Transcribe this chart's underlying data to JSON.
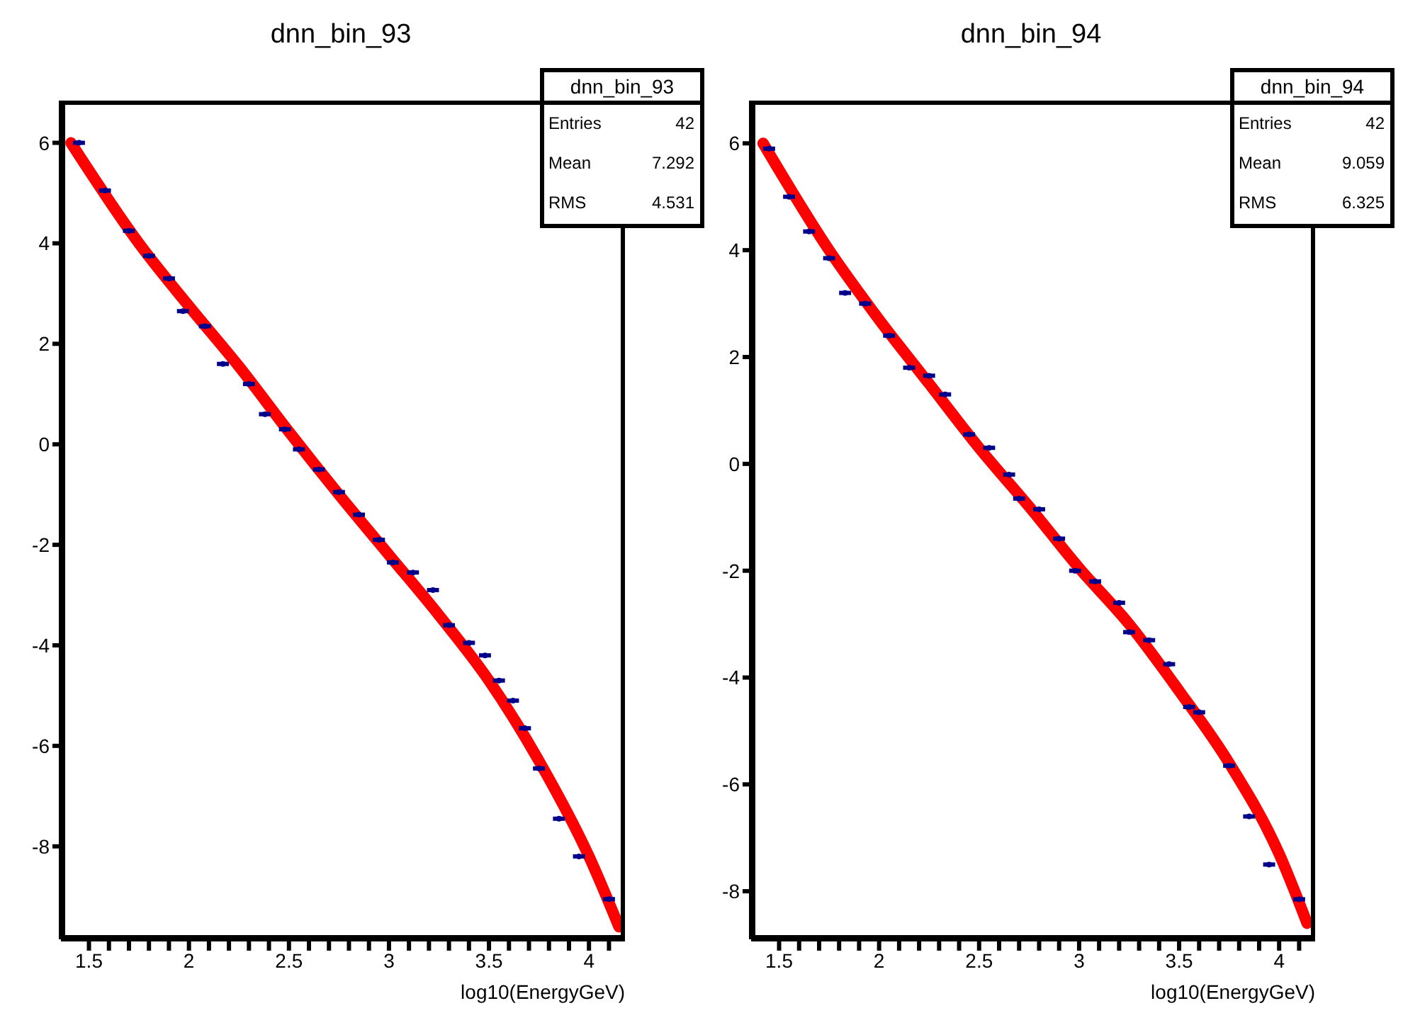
{
  "chart_data": [
    {
      "type": "scatter",
      "title": "dnn_bin_93",
      "xlabel": "log10(EnergyGeV)",
      "xlim": [
        1.36,
        4.18
      ],
      "ylim": [
        -9.85,
        6.84
      ],
      "xticks": [
        1.5,
        {
          "value": 1.6,
          "label": null
        },
        {
          "value": 1.7,
          "label": null
        },
        {
          "value": 1.8,
          "label": null
        },
        {
          "value": 1.9,
          "label": null
        },
        2,
        {
          "value": 2.1,
          "label": null
        },
        {
          "value": 2.2,
          "label": null
        },
        {
          "value": 2.3,
          "label": null
        },
        {
          "value": 2.4,
          "label": null
        },
        2.5,
        {
          "value": 2.6,
          "label": null
        },
        {
          "value": 2.7,
          "label": null
        },
        {
          "value": 2.8,
          "label": null
        },
        {
          "value": 2.9,
          "label": null
        },
        3,
        {
          "value": 3.1,
          "label": null
        },
        {
          "value": 3.2,
          "label": null
        },
        {
          "value": 3.3,
          "label": null
        },
        {
          "value": 3.4,
          "label": null
        },
        3.5,
        {
          "value": 3.6,
          "label": null
        },
        {
          "value": 3.7,
          "label": null
        },
        {
          "value": 3.8,
          "label": null
        },
        {
          "value": 3.9,
          "label": null
        },
        4,
        {
          "value": 4.1,
          "label": null
        }
      ],
      "yticks": [
        -8,
        -6,
        -4,
        -2,
        0,
        2,
        4,
        6
      ],
      "annotations": [
        "dnn_bin_93",
        "Entries",
        "42",
        "Mean",
        "7.292",
        "RMS",
        "4.531"
      ],
      "series": [
        {
          "color": "#00008b",
          "xerrors": [
            0.03,
            0.03,
            0.03,
            0.03,
            0.03,
            0.03,
            0.03,
            0.03,
            0.03,
            0.03,
            0.03,
            0.03,
            0.03,
            0.03,
            0.03,
            0.03,
            0.03,
            0.03,
            0.03,
            0.03,
            0.03,
            0.03,
            0.03,
            0.03,
            0.03,
            0.03,
            0.03,
            0.03,
            0.03
          ],
          "x": [
            1.45,
            1.58,
            1.7,
            1.8,
            1.9,
            1.97,
            2.08,
            2.17,
            2.3,
            2.38,
            2.48,
            2.55,
            2.65,
            2.75,
            2.85,
            2.95,
            3.02,
            3.12,
            3.22,
            3.3,
            3.4,
            3.48,
            3.55,
            3.62,
            3.68,
            3.75,
            3.85,
            3.95,
            4.1
          ],
          "values": [
            6.0,
            5.05,
            4.25,
            3.75,
            3.3,
            2.65,
            2.35,
            1.6,
            1.2,
            0.6,
            0.3,
            -0.1,
            -0.5,
            -0.95,
            -1.4,
            -1.9,
            -2.35,
            -2.55,
            -2.9,
            -3.6,
            -3.95,
            -4.2,
            -4.7,
            -5.1,
            -5.65,
            -6.45,
            -7.45,
            -8.2,
            -9.05
          ]
        },
        {
          "type": "line",
          "color": "#ff0000",
          "x": [
            1.41,
            1.75,
            2.0,
            2.25,
            2.5,
            2.75,
            3.0,
            3.25,
            3.5,
            3.75,
            4.0,
            4.15
          ],
          "values": [
            6.0,
            4.0,
            2.75,
            1.55,
            0.25,
            -1.0,
            -2.2,
            -3.4,
            -4.7,
            -6.3,
            -8.2,
            -9.6
          ]
        }
      ]
    },
    {
      "type": "scatter",
      "title": "dnn_bin_94",
      "xlabel": "log10(EnergyGeV)",
      "xlim": [
        1.36,
        4.18
      ],
      "ylim": [
        -8.9,
        6.8
      ],
      "xticks": [
        1.5,
        {
          "value": 1.6,
          "label": null
        },
        {
          "value": 1.7,
          "label": null
        },
        {
          "value": 1.8,
          "label": null
        },
        {
          "value": 1.9,
          "label": null
        },
        2,
        {
          "value": 2.1,
          "label": null
        },
        {
          "value": 2.2,
          "label": null
        },
        {
          "value": 2.3,
          "label": null
        },
        {
          "value": 2.4,
          "label": null
        },
        2.5,
        {
          "value": 2.6,
          "label": null
        },
        {
          "value": 2.7,
          "label": null
        },
        {
          "value": 2.8,
          "label": null
        },
        {
          "value": 2.9,
          "label": null
        },
        3,
        {
          "value": 3.1,
          "label": null
        },
        {
          "value": 3.2,
          "label": null
        },
        {
          "value": 3.3,
          "label": null
        },
        {
          "value": 3.4,
          "label": null
        },
        3.5,
        {
          "value": 3.6,
          "label": null
        },
        {
          "value": 3.7,
          "label": null
        },
        {
          "value": 3.8,
          "label": null
        },
        {
          "value": 3.9,
          "label": null
        },
        4,
        {
          "value": 4.1,
          "label": null
        }
      ],
      "yticks": [
        -8,
        -6,
        -4,
        -2,
        0,
        2,
        4,
        6
      ],
      "annotations": [
        "dnn_bin_94",
        "Entries",
        "42",
        "Mean",
        "9.059",
        "RMS",
        "6.325"
      ],
      "series": [
        {
          "color": "#00008b",
          "xerrors": [
            0.03,
            0.03,
            0.03,
            0.03,
            0.03,
            0.03,
            0.03,
            0.03,
            0.03,
            0.03,
            0.03,
            0.03,
            0.03,
            0.03,
            0.03,
            0.03,
            0.03,
            0.03,
            0.03,
            0.03,
            0.03,
            0.03,
            0.03,
            0.03,
            0.03,
            0.03,
            0.03,
            0.03
          ],
          "x": [
            1.45,
            1.55,
            1.65,
            1.75,
            1.83,
            1.93,
            2.05,
            2.15,
            2.25,
            2.33,
            2.45,
            2.55,
            2.65,
            2.7,
            2.8,
            2.9,
            2.98,
            3.08,
            3.2,
            3.25,
            3.35,
            3.45,
            3.55,
            3.6,
            3.75,
            3.85,
            3.95,
            4.1
          ],
          "values": [
            5.9,
            5.0,
            4.35,
            3.85,
            3.2,
            3.0,
            2.4,
            1.8,
            1.65,
            1.3,
            0.55,
            0.3,
            -0.2,
            -0.65,
            -0.85,
            -1.4,
            -2.0,
            -2.2,
            -2.6,
            -3.15,
            -3.3,
            -3.75,
            -4.55,
            -4.65,
            -5.65,
            -6.6,
            -7.5,
            -8.15
          ]
        },
        {
          "type": "line",
          "color": "#ff0000",
          "x": [
            1.42,
            1.75,
            2.0,
            2.25,
            2.5,
            2.75,
            3.0,
            3.25,
            3.5,
            3.75,
            4.0,
            4.14
          ],
          "values": [
            6.0,
            4.0,
            2.7,
            1.5,
            0.3,
            -0.8,
            -1.95,
            -3.0,
            -4.25,
            -5.6,
            -7.3,
            -8.6
          ]
        }
      ]
    }
  ]
}
